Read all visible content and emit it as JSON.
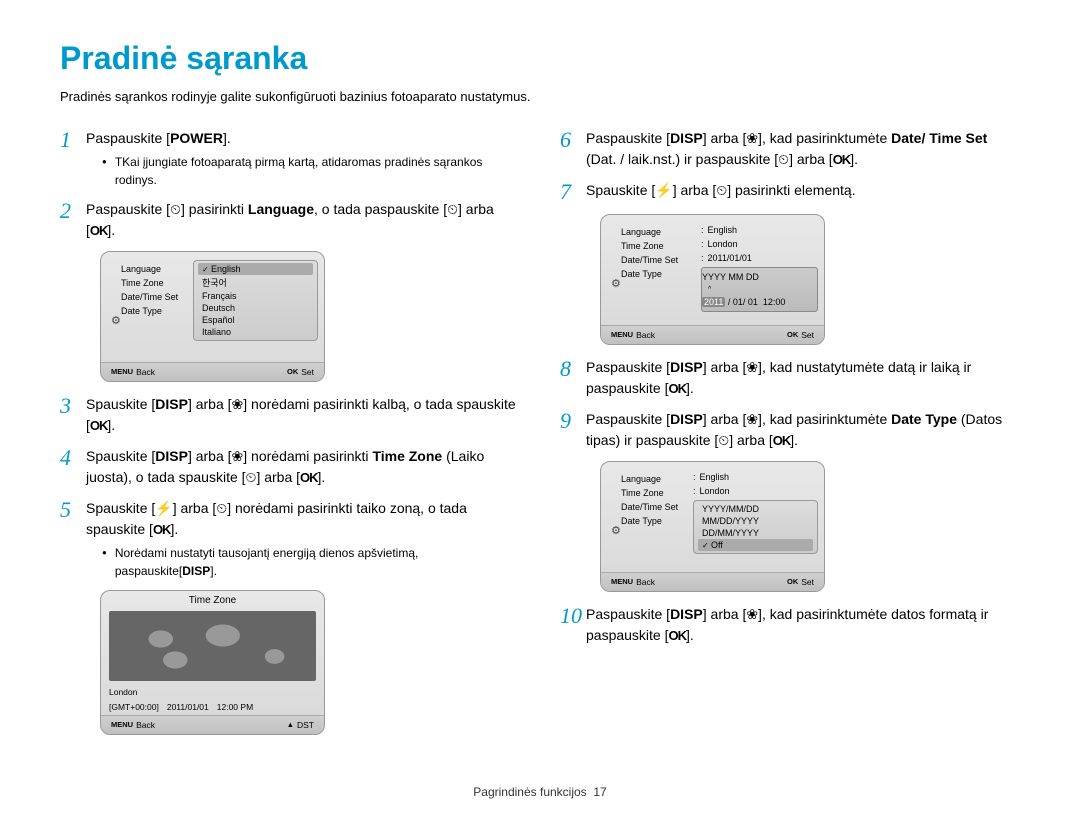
{
  "title": "Pradinė sąranka",
  "intro": "Pradinės sąrankos rodinyje galite sukonfigūruoti bazinius fotoaparato nustatymus.",
  "colors": {
    "accent": "#0099cc",
    "text": "#000000",
    "bg": "#ffffff"
  },
  "buttons": {
    "power": "POWER",
    "disp": "DISP",
    "ok": "OK",
    "menu": "MENU"
  },
  "icons": {
    "timer": "⏲",
    "macro": "❀",
    "flash": "⚡",
    "gear": "⚙"
  },
  "steps_left": [
    {
      "num": "1",
      "text_before": "Paspauskite [",
      "btn": "power",
      "text_after": "].",
      "bullets": [
        "TKai įjungiate fotoaparatą pirmą kartą, atidaromas pradinės sąrankos rodinys."
      ]
    },
    {
      "num": "2",
      "html": "Paspauskite [⏲] pasirinkti <b>Language</b>, o tada paspauskite [⏲] arba [<span class='icon-ok'>OK</span>]."
    },
    {
      "num": "3",
      "html": "Spauskite [<span class='btn'>DISP</span>] arba [❀] norėdami pasirinkti kalbą, o tada spauskite [<span class='icon-ok'>OK</span>]."
    },
    {
      "num": "4",
      "html": "Spauskite [<span class='btn'>DISP</span>] arba [❀] norėdami pasirinkti <b>Time Zone</b> (Laiko juosta), o tada spauskite [⏲] arba [<span class='icon-ok'>OK</span>]."
    },
    {
      "num": "5",
      "html": "Spauskite [⚡] arba [⏲] norėdami pasirinkti taiko zoną, o tada spauskite [<span class='icon-ok'>OK</span>].",
      "bullets": [
        "Norėdami nustatyti tausojantį energiją dienos apšvietimą, paspauskite[<span class='btn'>DISP</span>]."
      ]
    }
  ],
  "steps_right": [
    {
      "num": "6",
      "html": "Paspauskite [<span class='btn'>DISP</span>] arba [❀], kad pasirinktumėte <b>Date/ Time Set</b> (Dat. / laik.nst.) ir paspauskite [⏲] arba [<span class='icon-ok'>OK</span>]."
    },
    {
      "num": "7",
      "html": "Spauskite [⚡] arba [⏲] pasirinkti elementą."
    },
    {
      "num": "8",
      "html": "Paspauskite [<span class='btn'>DISP</span>] arba [❀], kad nustatytumėte datą ir laiką ir paspauskite [<span class='icon-ok'>OK</span>]."
    },
    {
      "num": "9",
      "html": "Paspauskite [<span class='btn'>DISP</span>] arba [❀], kad pasirinktumėte <b>Date Type</b> (Datos tipas) ir paspauskite [⏲] arba [<span class='icon-ok'>OK</span>]."
    },
    {
      "num": "10",
      "html": "Paspauskite [<span class='btn'>DISP</span>] arba [❀], kad pasirinktumėte datos formatą ir paspauskite [<span class='icon-ok'>OK</span>]."
    }
  ],
  "cam1": {
    "left": [
      "Language",
      "Time Zone",
      "Date/Time Set",
      "Date Type"
    ],
    "menu": [
      "English",
      "한국어",
      "Français",
      "Deutsch",
      "Español",
      "Italiano"
    ],
    "selected": 0,
    "footer_left": "Back",
    "footer_right": "Set"
  },
  "cam2": {
    "title": "Time Zone",
    "city": "London",
    "gmt": "[GMT+00:00]",
    "date": "2011/01/01",
    "time": "12:00 PM",
    "footer_left": "Back",
    "footer_right": "DST"
  },
  "cam3": {
    "left": [
      "Language",
      "Time Zone",
      "Date/Time Set",
      "Date Type"
    ],
    "values": [
      "English",
      "London",
      "2011/01/01",
      ""
    ],
    "date_top": "YYYY MM DD",
    "date_line": "2011 / 01/ 01  12:00",
    "highlight": "2011",
    "footer_left": "Back",
    "footer_right": "Set"
  },
  "cam4": {
    "left": [
      "Language",
      "Time Zone",
      "Date/Time Set",
      "Date Type"
    ],
    "values": [
      "English",
      "London",
      "",
      ""
    ],
    "menu": [
      "YYYY/MM/DD",
      "MM/DD/YYYY",
      "DD/MM/YYYY",
      "Off"
    ],
    "selected": 3,
    "footer_left": "Back",
    "footer_right": "Set"
  },
  "footer": {
    "label": "Pagrindinės funkcijos",
    "page": "17"
  }
}
